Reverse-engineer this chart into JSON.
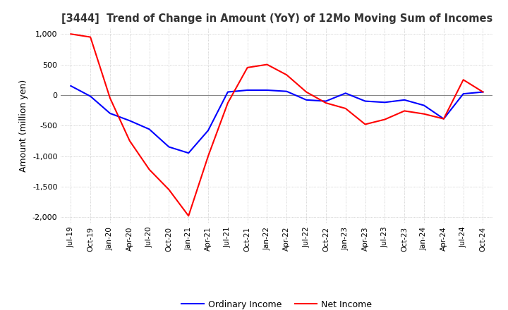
{
  "title": "[3444]  Trend of Change in Amount (YoY) of 12Mo Moving Sum of Incomes",
  "ylabel": "Amount (million yen)",
  "ylim": [
    -2100,
    1100
  ],
  "yticks": [
    1000,
    500,
    0,
    -500,
    -1000,
    -1500,
    -2000
  ],
  "background_color": "#ffffff",
  "grid_color": "#b0b0b0",
  "ordinary_income_color": "#0000ff",
  "net_income_color": "#ff0000",
  "x_labels": [
    "Jul-19",
    "Oct-19",
    "Jan-20",
    "Apr-20",
    "Jul-20",
    "Oct-20",
    "Jan-21",
    "Apr-21",
    "Jul-21",
    "Oct-21",
    "Jan-22",
    "Apr-22",
    "Jul-22",
    "Oct-22",
    "Jan-23",
    "Apr-23",
    "Jul-23",
    "Oct-23",
    "Jan-24",
    "Apr-24",
    "Jul-24",
    "Oct-24"
  ],
  "ordinary_income": [
    150,
    -20,
    -300,
    -420,
    -560,
    -850,
    -950,
    -580,
    50,
    80,
    80,
    60,
    -80,
    -100,
    30,
    -100,
    -120,
    -80,
    -170,
    -390,
    20,
    50
  ],
  "net_income": [
    1000,
    950,
    -50,
    -750,
    -1220,
    -1550,
    -1980,
    -1000,
    -130,
    450,
    500,
    330,
    50,
    -130,
    -220,
    -480,
    -400,
    -260,
    -310,
    -390,
    250,
    50
  ]
}
